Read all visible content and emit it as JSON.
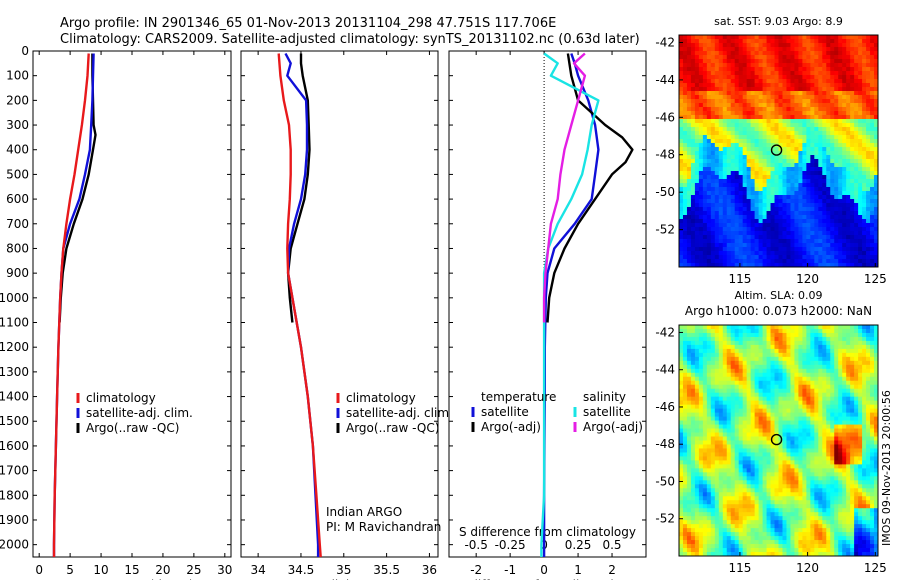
{
  "header": {
    "line1": "Argo profile: IN 2901346_65 01-Nov-2013 20131104_298 47.751S 117.706E",
    "line2": "Climatology: CARS2009. Satellite-adjusted climatology: synTS_20131102.nc (0.63d later)"
  },
  "colors": {
    "climatology": "#e8191b",
    "satellite": "#1010d8",
    "argo": "#000000",
    "sat_salinity": "#19e4e4",
    "argo_salinity_adj": "#e41ee4"
  },
  "chart_data": [
    {
      "type": "line",
      "panel": "temperature",
      "xlabel": "temperature (deg C)",
      "xlim": [
        -1,
        31
      ],
      "xticks": [
        0,
        5,
        10,
        15,
        20,
        25,
        30
      ],
      "ylim": [
        2050,
        0
      ],
      "yticks": [
        0,
        100,
        200,
        300,
        400,
        500,
        600,
        700,
        800,
        900,
        1000,
        1100,
        1200,
        1300,
        1400,
        1500,
        1600,
        1700,
        1800,
        1900,
        2000
      ],
      "legend": [
        "climatology",
        "satellite-adj. clim.",
        "Argo(..raw -QC)"
      ],
      "series": [
        {
          "name": "climatology",
          "color": "#e8191b",
          "depth": [
            10,
            100,
            200,
            300,
            400,
            500,
            600,
            700,
            800,
            900,
            1000,
            1200,
            1400,
            1600,
            1800,
            2000,
            2050
          ],
          "values": [
            8.0,
            7.8,
            7.4,
            6.9,
            6.3,
            5.7,
            5.0,
            4.4,
            3.9,
            3.6,
            3.4,
            3.1,
            2.9,
            2.7,
            2.5,
            2.4,
            2.4
          ]
        },
        {
          "name": "satellite-adj. clim.",
          "color": "#1010d8",
          "depth": [
            10,
            100,
            200,
            300,
            400,
            500,
            600,
            700,
            800,
            900,
            1000,
            1200,
            1400,
            1600,
            1800,
            2000,
            2050
          ],
          "values": [
            8.8,
            8.7,
            8.6,
            8.4,
            8.2,
            7.4,
            6.5,
            5.0,
            3.9,
            3.6,
            3.4,
            3.1,
            2.9,
            2.7,
            2.5,
            2.4,
            2.4
          ]
        },
        {
          "name": "Argo(..raw -QC)",
          "color": "#000000",
          "depth": [
            10,
            100,
            200,
            300,
            340,
            400,
            500,
            600,
            700,
            800,
            900,
            1000,
            1100
          ],
          "values": [
            8.6,
            8.6,
            8.7,
            8.8,
            9.1,
            8.7,
            8.0,
            7.0,
            5.6,
            4.4,
            3.8,
            3.5,
            3.3
          ]
        }
      ]
    },
    {
      "type": "line",
      "panel": "salinity",
      "xlabel": "salinity",
      "xlim": [
        33.8,
        36.1
      ],
      "xticks": [
        34,
        34.5,
        35,
        35.5,
        36
      ],
      "ylim": [
        2050,
        0
      ],
      "legend": [
        "climatology",
        "satellite-adj. clim.",
        "Argo(..raw -QC)"
      ],
      "annotation": [
        "Indian ARGO",
        "PI: M Ravichandran"
      ],
      "series": [
        {
          "name": "climatology",
          "color": "#e8191b",
          "depth": [
            10,
            100,
            200,
            300,
            400,
            500,
            600,
            700,
            800,
            900,
            1000,
            1200,
            1400,
            1600,
            1800,
            2000,
            2050
          ],
          "values": [
            34.24,
            34.26,
            34.3,
            34.36,
            34.38,
            34.38,
            34.37,
            34.35,
            34.34,
            34.35,
            34.4,
            34.5,
            34.58,
            34.64,
            34.68,
            34.72,
            34.73
          ]
        },
        {
          "name": "satellite-adj. clim.",
          "color": "#1010d8",
          "depth": [
            10,
            50,
            100,
            200,
            300,
            400,
            500,
            600,
            700,
            800,
            900,
            1000,
            1200,
            1400,
            1600,
            1800,
            2000,
            2050
          ],
          "values": [
            34.32,
            34.38,
            34.34,
            34.56,
            34.57,
            34.57,
            34.55,
            34.5,
            34.42,
            34.36,
            34.35,
            34.4,
            34.5,
            34.58,
            34.64,
            34.67,
            34.7,
            34.7
          ]
        },
        {
          "name": "Argo(..raw -QC)",
          "color": "#000000",
          "depth": [
            10,
            50,
            100,
            200,
            300,
            400,
            500,
            600,
            700,
            800,
            900,
            1000,
            1100
          ],
          "values": [
            34.5,
            34.5,
            34.52,
            34.58,
            34.59,
            34.6,
            34.58,
            34.54,
            34.46,
            34.38,
            34.35,
            34.37,
            34.4
          ]
        }
      ]
    },
    {
      "type": "line",
      "panel": "difference",
      "xlabel": "T difference from climatology",
      "xlabel_top": "S difference from climatology",
      "xlim": [
        -2.8,
        3.0
      ],
      "xticks": [
        -2,
        -1,
        0,
        1,
        2
      ],
      "x2ticks": [
        -0.5,
        -0.25,
        0,
        0.25,
        0.5
      ],
      "ylim": [
        2050,
        0
      ],
      "legend_headers": [
        "temperature",
        "salinity"
      ],
      "legend": [
        "satellite",
        "Argo(-adj)",
        "satellite",
        "Argo(-adj)"
      ],
      "series": [
        {
          "name": "satellite",
          "group": "temperature",
          "color": "#1010d8",
          "depth": [
            10,
            50,
            100,
            200,
            300,
            400,
            500,
            600,
            700,
            800,
            900,
            1000,
            1200,
            1400,
            1600,
            1800,
            2000,
            2050
          ],
          "values": [
            0.8,
            0.9,
            1.0,
            1.3,
            1.5,
            1.6,
            1.5,
            1.4,
            0.9,
            0.3,
            0.1,
            0.05,
            0.02,
            0.02,
            0.01,
            0,
            0,
            0
          ]
        },
        {
          "name": "Argo(-adj)",
          "group": "temperature",
          "color": "#000000",
          "depth": [
            10,
            100,
            200,
            300,
            350,
            400,
            450,
            500,
            600,
            700,
            800,
            900,
            1000,
            1100
          ],
          "values": [
            0.7,
            0.8,
            1.0,
            1.8,
            2.3,
            2.6,
            2.4,
            2.0,
            1.5,
            1.0,
            0.6,
            0.3,
            0.15,
            0.1
          ]
        },
        {
          "name": "satellite",
          "group": "salinity",
          "color": "#19e4e4",
          "depth": [
            10,
            50,
            100,
            200,
            300,
            400,
            500,
            600,
            700,
            800,
            900,
            1000,
            1200,
            1400,
            1600,
            1800,
            2000,
            2050
          ],
          "values": [
            0.0,
            0.1,
            0.05,
            0.4,
            0.35,
            0.32,
            0.28,
            0.2,
            0.1,
            0.03,
            0.0,
            0.0,
            0.0,
            0.0,
            0.0,
            0.0,
            -0.02,
            -0.02
          ]
        },
        {
          "name": "Argo(-adj)",
          "group": "salinity",
          "color": "#e41ee4",
          "depth": [
            10,
            50,
            100,
            200,
            300,
            400,
            500,
            600,
            700,
            800,
            900,
            1000,
            1100
          ],
          "values": [
            0.3,
            0.22,
            0.3,
            0.25,
            0.2,
            0.15,
            0.12,
            0.1,
            0.05,
            0.03,
            0.01,
            0.0,
            0.0
          ]
        }
      ]
    },
    {
      "type": "heatmap",
      "panel": "sst_map",
      "title": "sat. SST: 9.03 Argo: 8.9",
      "xlim": [
        110.5,
        125.2
      ],
      "ylim": [
        -54,
        -41.6
      ],
      "xticks": [
        115,
        120,
        125
      ],
      "yticks": [
        -42,
        -44,
        -46,
        -48,
        -50,
        -52
      ],
      "marker": {
        "lon": 117.706,
        "lat": -47.751
      }
    },
    {
      "type": "heatmap",
      "panel": "sla_map",
      "title": "Altim. SLA: 0.09",
      "subtitle": "Argo h1000: 0.073 h2000: NaN",
      "xlim": [
        110.5,
        125.2
      ],
      "ylim": [
        -54,
        -41.6
      ],
      "xticks": [
        115,
        120,
        125
      ],
      "yticks": [
        -42,
        -44,
        -46,
        -48,
        -50,
        -52
      ],
      "marker": {
        "lon": 117.706,
        "lat": -47.751
      }
    }
  ],
  "stamp": "IMOS 09-Nov-2013 20:00:56"
}
